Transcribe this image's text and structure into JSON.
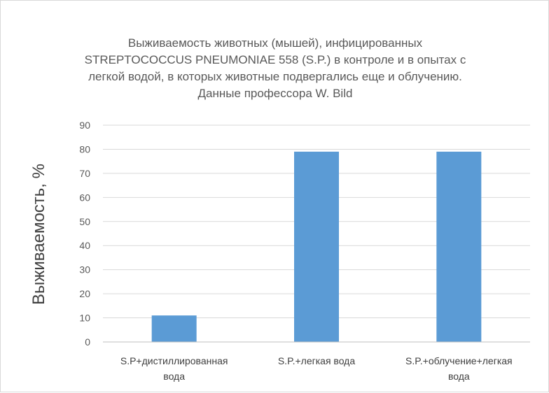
{
  "chart_data": {
    "type": "bar",
    "title_lines": [
      "Выживаемость животных (мышей), инфицированных",
      "STREPTOCOCCUS PNEUMONIAE 558 (S.P.) в контроле и в опытах с",
      "легкой водой, в которых животные подвергались еще и облучению.",
      "Данные профессора W. Bild"
    ],
    "ylabel": "Выживаемость, %",
    "categories": [
      [
        "S.P+дистиллированная",
        "вода"
      ],
      [
        "S.P.+легкая вода"
      ],
      [
        "S.P.+облучение+легкая",
        "вода"
      ]
    ],
    "values": [
      11,
      79,
      79
    ],
    "ylim": [
      0,
      90
    ],
    "yticks": [
      0,
      10,
      20,
      30,
      40,
      50,
      60,
      70,
      80,
      90
    ],
    "grid": true,
    "colors": {
      "bar": "#5b9bd5",
      "grid": "#d9d9d9",
      "axis": "#bfbfbf"
    }
  }
}
